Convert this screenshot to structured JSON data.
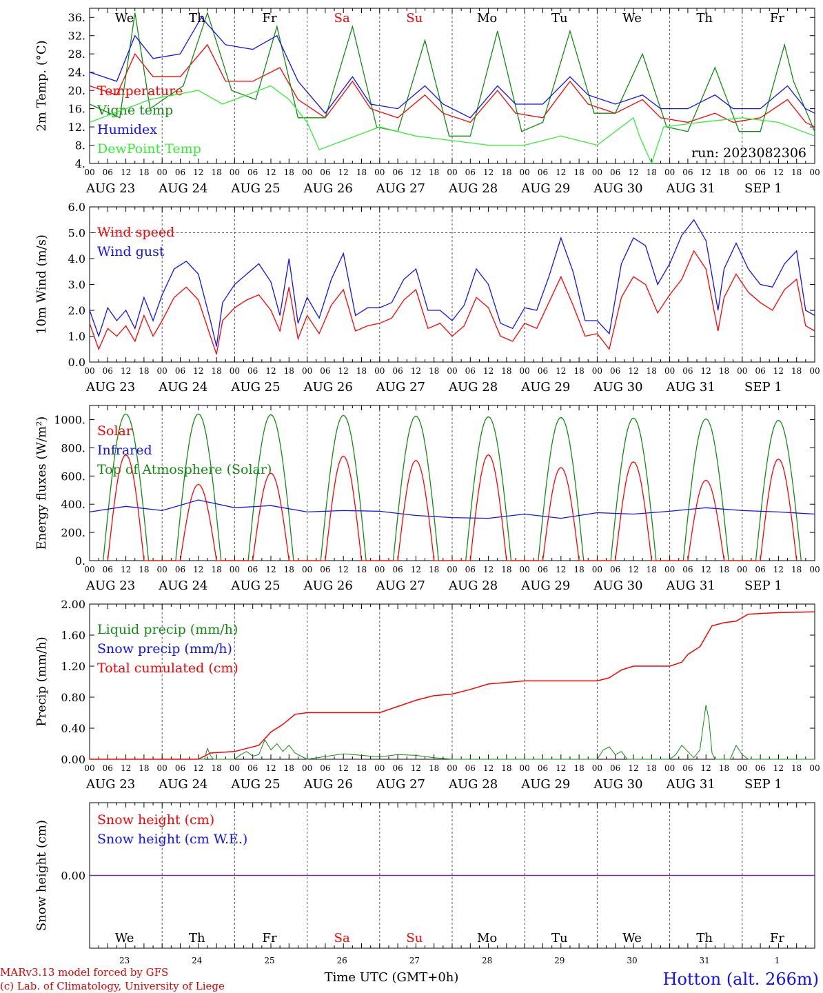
{
  "colors": {
    "red": "#ff0000",
    "green": "#108c10",
    "blue": "#1010ff",
    "lightgreen": "#33ee33",
    "purple": "#7a2a9a"
  },
  "days": [
    {
      "name": "We",
      "weekend": false,
      "date": "AUG 23",
      "num": "23"
    },
    {
      "name": "Th",
      "weekend": false,
      "date": "AUG 24",
      "num": "24"
    },
    {
      "name": "Fr",
      "weekend": false,
      "date": "AUG 25",
      "num": "25"
    },
    {
      "name": "Sa",
      "weekend": true,
      "date": "AUG 26",
      "num": "26"
    },
    {
      "name": "Su",
      "weekend": true,
      "date": "AUG 27",
      "num": "27"
    },
    {
      "name": "Mo",
      "weekend": false,
      "date": "AUG 28",
      "num": "28"
    },
    {
      "name": "Tu",
      "weekend": false,
      "date": "AUG 29",
      "num": "29"
    },
    {
      "name": "We",
      "weekend": false,
      "date": "AUG 30",
      "num": "30"
    },
    {
      "name": "Th",
      "weekend": false,
      "date": "AUG 31",
      "num": "31"
    },
    {
      "name": "Fr",
      "weekend": false,
      "date": "SEP  1",
      "num": "1"
    }
  ],
  "hour_labels": [
    "00",
    "06",
    "12",
    "18"
  ],
  "run_label": "run: 2023082306",
  "footer": {
    "model": "MARv3.13 model forced by GFS",
    "copyright": "(c) Lab. of Climatology, University of Liege",
    "time_axis": "Time UTC (GMT+0h)",
    "station": "Hotton (alt. 266m)"
  },
  "chart_data": [
    {
      "type": "line",
      "ylabel": "2m Temp. (°C)",
      "ylim": [
        4,
        38
      ],
      "yticks": [
        "4.",
        "8.",
        "12.",
        "16.",
        "20.",
        "24.",
        "28.",
        "32.",
        "36."
      ],
      "grid": "vertical dotted at day boundaries",
      "legend_placement": "left",
      "x_unit": "hours since 2023-08-23 00 UTC",
      "series": [
        {
          "name": "Temperature",
          "color": "red",
          "x": [
            0,
            9,
            15,
            21,
            30,
            39,
            45,
            54,
            63,
            69,
            78,
            87,
            93,
            102,
            111,
            117,
            126,
            135,
            141,
            150,
            159,
            165,
            174,
            183,
            189,
            198,
            207,
            213,
            222,
            231,
            237,
            240
          ],
          "y": [
            21,
            19,
            28,
            23,
            23,
            30,
            22,
            22,
            25,
            18,
            14,
            22,
            16,
            14,
            19,
            15,
            13,
            20,
            15,
            14,
            22,
            17,
            15,
            18,
            14,
            13,
            15,
            13,
            14,
            18,
            13,
            12
          ]
        },
        {
          "name": "Vigne temp",
          "color": "green",
          "x": [
            0,
            10,
            15,
            20,
            31,
            39,
            47,
            55,
            62,
            69,
            78,
            87,
            95,
            102,
            111,
            119,
            126,
            135,
            143,
            150,
            159,
            167,
            174,
            183,
            191,
            198,
            207,
            215,
            222,
            230,
            233,
            240
          ],
          "y": [
            17,
            14,
            37,
            16,
            21,
            37,
            20,
            18,
            34,
            14,
            14,
            34,
            12,
            11,
            31,
            10,
            10,
            33,
            11,
            13,
            33,
            15,
            15,
            28,
            12,
            11,
            25,
            11,
            11,
            30,
            22,
            11
          ]
        },
        {
          "name": "Humidex",
          "color": "blue",
          "x": [
            0,
            9,
            15,
            21,
            30,
            37,
            45,
            54,
            62,
            69,
            78,
            87,
            93,
            102,
            111,
            117,
            126,
            135,
            141,
            150,
            159,
            165,
            174,
            183,
            189,
            198,
            207,
            213,
            222,
            231,
            237,
            240
          ],
          "y": [
            24,
            22,
            32,
            27,
            28,
            36,
            30,
            29,
            32,
            22,
            15,
            23,
            17,
            16,
            21,
            17,
            14,
            21,
            17,
            17,
            23,
            19,
            17,
            19,
            16,
            16,
            19,
            16,
            16,
            21,
            16,
            15
          ]
        },
        {
          "name": "DewPoint Temp",
          "color": "lightgreen",
          "x": [
            0,
            12,
            20,
            36,
            44,
            60,
            66,
            72,
            76,
            84,
            96,
            108,
            120,
            132,
            144,
            156,
            168,
            180,
            182,
            186,
            190,
            202,
            216,
            228,
            240
          ],
          "y": [
            13,
            16,
            18,
            20,
            17,
            21,
            18,
            13,
            7,
            9,
            12,
            10,
            9,
            8,
            8,
            10,
            8,
            14,
            10,
            4,
            12,
            13,
            14,
            13,
            10
          ]
        }
      ]
    },
    {
      "type": "line",
      "ylabel": "10m Wind (m/s)",
      "ylim": [
        0,
        6
      ],
      "yticks": [
        "0.0",
        "1.0",
        "2.0",
        "3.0",
        "4.0",
        "5.0",
        "6.0"
      ],
      "reference_line": 5.0,
      "legend_placement": "left",
      "series": [
        {
          "name": "Wind speed",
          "color": "red",
          "x": [
            0,
            3,
            6,
            9,
            12,
            15,
            18,
            21,
            24,
            28,
            32,
            36,
            40,
            42,
            44,
            48,
            52,
            56,
            60,
            63,
            66,
            69,
            72,
            76,
            80,
            84,
            88,
            92,
            96,
            100,
            104,
            108,
            112,
            116,
            120,
            124,
            128,
            132,
            136,
            140,
            144,
            148,
            152,
            156,
            160,
            164,
            168,
            172,
            176,
            180,
            184,
            188,
            192,
            196,
            200,
            204,
            208,
            210,
            214,
            218,
            222,
            226,
            230,
            234,
            237,
            240
          ],
          "y": [
            1.5,
            0.5,
            1.3,
            1.0,
            1.4,
            0.8,
            1.8,
            1.0,
            1.6,
            2.5,
            2.9,
            2.4,
            1.0,
            0.3,
            1.6,
            2.1,
            2.4,
            2.6,
            2.0,
            1.2,
            2.9,
            0.9,
            1.8,
            1.1,
            2.2,
            2.8,
            1.2,
            1.4,
            1.5,
            1.7,
            2.4,
            2.8,
            1.3,
            1.5,
            1.0,
            1.4,
            2.5,
            2.1,
            1.0,
            0.8,
            1.5,
            1.3,
            2.3,
            3.3,
            2.2,
            1.0,
            1.1,
            0.5,
            2.5,
            3.3,
            3.0,
            1.9,
            2.6,
            3.2,
            4.3,
            3.6,
            1.2,
            2.5,
            3.4,
            2.7,
            2.3,
            2.0,
            2.8,
            3.2,
            1.4,
            1.2
          ]
        },
        {
          "name": "Wind gust",
          "color": "blue",
          "x": [
            0,
            3,
            6,
            9,
            12,
            15,
            18,
            21,
            24,
            28,
            32,
            36,
            40,
            42,
            44,
            48,
            52,
            56,
            60,
            63,
            66,
            69,
            72,
            76,
            80,
            84,
            88,
            92,
            96,
            100,
            104,
            108,
            112,
            116,
            120,
            124,
            128,
            132,
            136,
            140,
            144,
            148,
            152,
            156,
            160,
            164,
            168,
            172,
            176,
            180,
            184,
            188,
            192,
            196,
            200,
            204,
            208,
            210,
            214,
            218,
            222,
            226,
            230,
            234,
            237,
            240
          ],
          "y": [
            2.0,
            1.0,
            2.1,
            1.6,
            2.0,
            1.3,
            2.5,
            1.6,
            2.6,
            3.6,
            3.9,
            3.4,
            1.6,
            0.6,
            2.3,
            3.0,
            3.4,
            3.8,
            3.1,
            1.8,
            4.0,
            1.5,
            2.5,
            1.7,
            3.2,
            4.2,
            1.8,
            2.1,
            2.1,
            2.3,
            3.2,
            3.6,
            2.0,
            2.0,
            1.6,
            2.2,
            3.6,
            3.0,
            1.5,
            1.3,
            2.1,
            2.0,
            3.3,
            4.8,
            3.5,
            1.6,
            1.6,
            1.1,
            3.8,
            4.8,
            4.5,
            3.0,
            3.8,
            4.9,
            5.5,
            4.7,
            2.0,
            3.6,
            4.6,
            3.6,
            3.0,
            2.9,
            3.8,
            4.3,
            2.0,
            1.8
          ]
        }
      ]
    },
    {
      "type": "line",
      "ylabel": "Energy fluxes (W/m²)",
      "ylim": [
        0,
        1100
      ],
      "yticks": [
        "0.",
        "200.",
        "400.",
        "600.",
        "800.",
        "1000."
      ],
      "legend_placement": "left",
      "toa_peaks": [
        1040,
        1040,
        1035,
        1030,
        1025,
        1020,
        1015,
        1010,
        1005,
        995
      ],
      "solar_peaks": [
        750,
        540,
        620,
        740,
        710,
        750,
        660,
        700,
        570,
        720
      ],
      "series": [
        {
          "name": "Solar",
          "color": "red"
        },
        {
          "name": "Infrared",
          "color": "blue",
          "x": [
            0,
            12,
            24,
            36,
            48,
            60,
            72,
            84,
            96,
            108,
            120,
            132,
            144,
            156,
            168,
            180,
            192,
            204,
            216,
            228,
            240
          ],
          "y": [
            345,
            385,
            355,
            430,
            375,
            390,
            345,
            355,
            350,
            320,
            305,
            300,
            330,
            300,
            340,
            330,
            350,
            375,
            355,
            345,
            330
          ]
        },
        {
          "name": "Top of Atmosphere (Solar)",
          "color": "green"
        }
      ]
    },
    {
      "type": "line",
      "ylabel": "Precip (mm/h)",
      "ylim": [
        0,
        2.0
      ],
      "yticks": [
        "0.00",
        "0.40",
        "0.80",
        "1.20",
        "1.60",
        "2.00"
      ],
      "legend_placement": "left",
      "series": [
        {
          "name": "Liquid precip (mm/h)",
          "color": "green",
          "x": [
            0,
            38,
            39,
            40,
            41,
            48,
            50,
            52,
            54,
            56,
            58,
            60,
            62,
            64,
            66,
            68,
            70,
            72,
            84,
            90,
            96,
            102,
            108,
            114,
            120,
            126,
            168,
            170,
            172,
            174,
            176,
            178,
            192,
            194,
            196,
            198,
            200,
            202,
            204,
            205,
            206,
            207,
            212,
            214,
            216,
            218,
            240
          ],
          "y": [
            0,
            0,
            0.14,
            0.05,
            0,
            0,
            0.06,
            0.1,
            0.04,
            0.06,
            0.25,
            0.12,
            0.2,
            0.1,
            0.18,
            0.08,
            0.04,
            0,
            0.07,
            0.05,
            0.03,
            0.06,
            0.05,
            0.02,
            0,
            0,
            0,
            0.12,
            0.16,
            0.06,
            0.1,
            0,
            0,
            0.06,
            0.18,
            0.1,
            0.02,
            0.12,
            0.7,
            0.5,
            0.08,
            0,
            0,
            0.18,
            0.06,
            0,
            0
          ]
        },
        {
          "name": "Snow precip (mm/h)",
          "color": "blue"
        },
        {
          "name": "Total cumulated (cm)",
          "color": "red",
          "x": [
            0,
            36,
            40,
            48,
            52,
            56,
            60,
            64,
            68,
            72,
            84,
            96,
            102,
            108,
            114,
            120,
            126,
            132,
            144,
            156,
            168,
            172,
            176,
            180,
            192,
            196,
            198,
            202,
            206,
            210,
            214,
            218,
            228,
            240
          ],
          "y": [
            0,
            0,
            0.08,
            0.1,
            0.14,
            0.18,
            0.35,
            0.45,
            0.58,
            0.6,
            0.6,
            0.6,
            0.68,
            0.76,
            0.82,
            0.84,
            0.9,
            0.97,
            1.01,
            1.01,
            1.01,
            1.05,
            1.15,
            1.2,
            1.2,
            1.25,
            1.35,
            1.45,
            1.72,
            1.76,
            1.78,
            1.87,
            1.89,
            1.9
          ]
        }
      ]
    },
    {
      "type": "line",
      "ylabel": "Snow height (cm)",
      "ylim": [
        -1,
        1
      ],
      "yticks": [
        "0.00"
      ],
      "legend_placement": "left",
      "series": [
        {
          "name": "Snow height (cm)",
          "color": "red",
          "x": [
            0,
            240
          ],
          "y": [
            0,
            0
          ]
        },
        {
          "name": "Snow height (cm W.E.)",
          "color": "blue",
          "x": [
            0,
            240
          ],
          "y": [
            0,
            0
          ]
        }
      ]
    }
  ]
}
